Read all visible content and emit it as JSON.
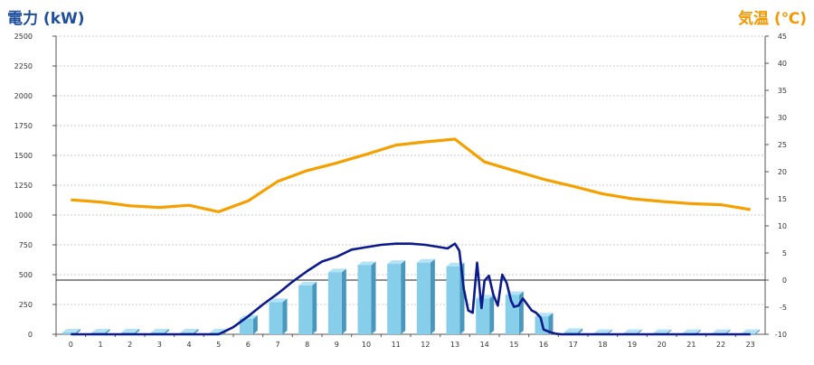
{
  "chart_data": {
    "type": "bar+line",
    "y_left_label": "電力 (kW)",
    "y_right_label": "気温 (℃)",
    "ylim_left": [
      0,
      2500
    ],
    "ylim_right": [
      -10,
      45
    ],
    "y_left_ticks": [
      0,
      250,
      500,
      750,
      1000,
      1250,
      1500,
      1750,
      2000,
      2250,
      2500
    ],
    "y_right_ticks": [
      -10,
      -5,
      0,
      5,
      10,
      15,
      20,
      25,
      30,
      35,
      40,
      45
    ],
    "categories": [
      "0",
      "1",
      "2",
      "3",
      "4",
      "5",
      "6",
      "7",
      "8",
      "9",
      "10",
      "11",
      "12",
      "13",
      "14",
      "15",
      "16",
      "17",
      "18",
      "19",
      "20",
      "21",
      "22",
      "23"
    ],
    "grid": true,
    "series": [
      {
        "kind": "bar",
        "axis": "left",
        "color": "#87ceeb",
        "values": [
          15,
          15,
          15,
          15,
          15,
          15,
          130,
          270,
          410,
          520,
          580,
          590,
          600,
          570,
          300,
          330,
          150,
          20,
          10,
          10,
          10,
          10,
          10,
          10
        ]
      },
      {
        "kind": "line",
        "axis": "left",
        "color": "#0b1a8c",
        "x": [
          0,
          1,
          2,
          3,
          4,
          5,
          5.5,
          6,
          6.5,
          7,
          7.5,
          8,
          8.5,
          9,
          9.5,
          10,
          10.5,
          11,
          11.5,
          12,
          12.5,
          12.75,
          13,
          13.15,
          13.3,
          13.45,
          13.6,
          13.75,
          13.9,
          14,
          14.15,
          14.3,
          14.45,
          14.6,
          14.75,
          14.9,
          15,
          15.15,
          15.3,
          15.45,
          15.6,
          15.75,
          15.9,
          16,
          16.2,
          16.4,
          16.6,
          16.8,
          17,
          17.5,
          18,
          19,
          20,
          21,
          22,
          23
        ],
        "values": [
          0,
          0,
          0,
          0,
          0,
          0,
          60,
          150,
          250,
          340,
          440,
          530,
          610,
          650,
          710,
          730,
          750,
          760,
          760,
          750,
          730,
          720,
          760,
          700,
          380,
          200,
          180,
          600,
          220,
          450,
          490,
          330,
          240,
          500,
          430,
          280,
          230,
          240,
          300,
          250,
          200,
          180,
          140,
          40,
          20,
          5,
          0,
          0,
          0,
          0,
          0,
          0,
          0,
          0,
          0,
          0
        ]
      },
      {
        "kind": "line",
        "axis": "right",
        "color": "#f5a000",
        "values": [
          14.8,
          14.4,
          13.7,
          13.4,
          13.8,
          12.6,
          14.6,
          18.2,
          20.2,
          21.6,
          23.2,
          24.9,
          25.5,
          26.0,
          21.8,
          20.2,
          18.6,
          17.3,
          15.9,
          15.0,
          14.5,
          14.1,
          13.9,
          13.0
        ]
      }
    ]
  }
}
